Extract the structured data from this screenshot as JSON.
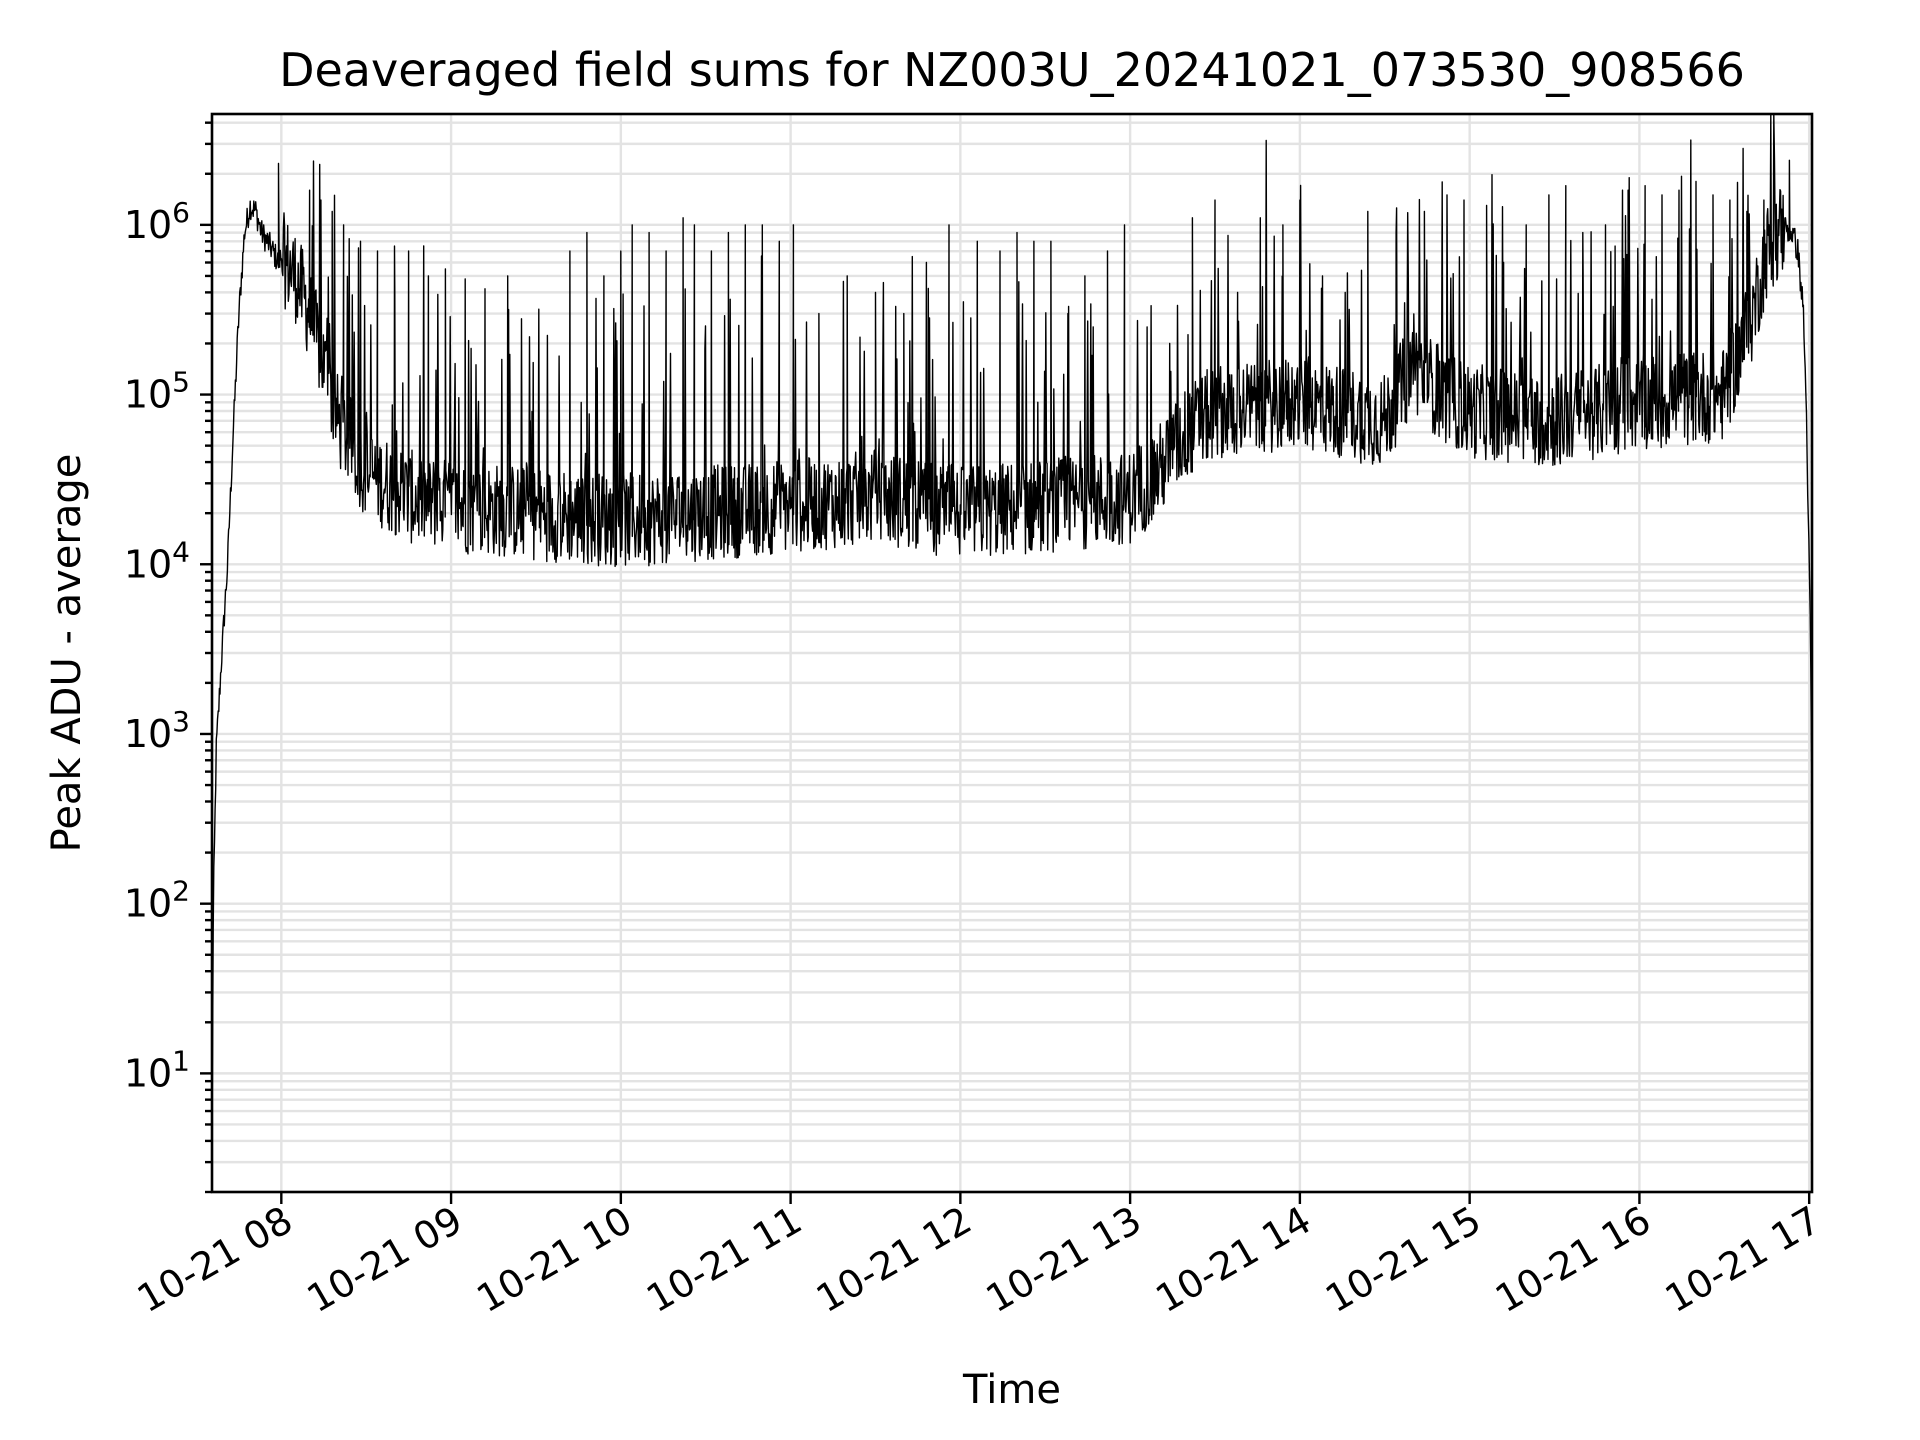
{
  "chart_data": {
    "type": "line",
    "title": "Deaveraged field sums for NZ003U_20241021_073530_908566",
    "xlabel": "Time",
    "ylabel": "Peak ADU - average",
    "yscale": "log",
    "ylim": [
      2,
      4500000
    ],
    "xlim": [
      "2024-10-21 07:35:30",
      "2024-10-21 17:01:00"
    ],
    "grid": true,
    "grid_minor": true,
    "line_color": "#000000",
    "x_ticks": [
      "10-21 08",
      "10-21 09",
      "10-21 10",
      "10-21 11",
      "10-21 12",
      "10-21 13",
      "10-21 14",
      "10-21 15",
      "10-21 16",
      "10-21 17"
    ],
    "x_tick_times": [
      "2024-10-21 08:00",
      "2024-10-21 09:00",
      "2024-10-21 10:00",
      "2024-10-21 11:00",
      "2024-10-21 12:00",
      "2024-10-21 13:00",
      "2024-10-21 14:00",
      "2024-10-21 15:00",
      "2024-10-21 16:00",
      "2024-10-21 17:00"
    ],
    "y_ticks": [
      {
        "value": 10,
        "base": "10",
        "exp": "1"
      },
      {
        "value": 100,
        "base": "10",
        "exp": "2"
      },
      {
        "value": 1000,
        "base": "10",
        "exp": "3"
      },
      {
        "value": 10000,
        "base": "10",
        "exp": "4"
      },
      {
        "value": 100000,
        "base": "10",
        "exp": "5"
      },
      {
        "value": 1000000,
        "base": "10",
        "exp": "6"
      }
    ],
    "series": [
      {
        "x": [
          "2024-10-21 07:35:30",
          "2024-10-21 07:36:00",
          "2024-10-21 07:37:00",
          "2024-10-21 07:39:00",
          "2024-10-21 07:41:00",
          "2024-10-21 07:43:00",
          "2024-10-21 07:45:00",
          "2024-10-21 07:47:00",
          "2024-10-21 07:49:00",
          "2024-10-21 07:51:00",
          "2024-10-21 07:53:00",
          "2024-10-21 07:55:00",
          "2024-10-21 07:57:00",
          "2024-10-21 07:59:00",
          "2024-10-21 08:00:00",
          "2024-10-21 08:05:00",
          "2024-10-21 08:10:00",
          "2024-10-21 08:15:00",
          "2024-10-21 08:20:00",
          "2024-10-21 08:30:00",
          "2024-10-21 08:45:00",
          "2024-10-21 09:00:00",
          "2024-10-21 09:30:00",
          "2024-10-21 10:00:00",
          "2024-10-21 10:30:00",
          "2024-10-21 11:00:00",
          "2024-10-21 11:30:00",
          "2024-10-21 12:00:00",
          "2024-10-21 12:30:00",
          "2024-10-21 13:00:00",
          "2024-10-21 13:10:00",
          "2024-10-21 13:20:00",
          "2024-10-21 13:30:00",
          "2024-10-21 14:00:00",
          "2024-10-21 14:30:00",
          "2024-10-21 14:40:00",
          "2024-10-21 14:50:00",
          "2024-10-21 15:00:00",
          "2024-10-21 15:30:00",
          "2024-10-21 16:00:00",
          "2024-10-21 16:30:00",
          "2024-10-21 16:40:00",
          "2024-10-21 16:45:00",
          "2024-10-21 16:50:00",
          "2024-10-21 16:52:00",
          "2024-10-21 16:54:00",
          "2024-10-21 16:56:00",
          "2024-10-21 16:58:00",
          "2024-10-21 16:59:00",
          "2024-10-21 17:00:00",
          "2024-10-21 17:00:30",
          "2024-10-21 17:01:00"
        ],
        "y": [
          4,
          100,
          800,
          3000,
          10000,
          60000,
          300000,
          900000,
          1300000,
          1200000,
          900000,
          800000,
          700000,
          600000,
          650000,
          500000,
          300000,
          150000,
          70000,
          35000,
          25000,
          22000,
          20000,
          18000,
          20000,
          22000,
          25000,
          20000,
          22000,
          25000,
          35000,
          60000,
          80000,
          90000,
          70000,
          150000,
          100000,
          80000,
          70000,
          90000,
          100000,
          300000,
          700000,
          950000,
          950000,
          900000,
          700000,
          300000,
          80000,
          10000,
          3000,
          400
        ],
        "spikes": [
          [
            "2024-10-21 07:59:00",
            2300000
          ],
          [
            "2024-10-21 08:10:00",
            1600000
          ],
          [
            "2024-10-21 08:14:00",
            1400000
          ],
          [
            "2024-10-21 08:18:00",
            1200000
          ],
          [
            "2024-10-21 08:22:00",
            1000000
          ],
          [
            "2024-10-21 08:28:00",
            800000
          ],
          [
            "2024-10-21 08:34:00",
            700000
          ],
          [
            "2024-10-21 08:40:00",
            750000
          ],
          [
            "2024-10-21 08:45:00",
            700000
          ],
          [
            "2024-10-21 08:52:00",
            500000
          ],
          [
            "2024-10-21 08:58:00",
            550000
          ],
          [
            "2024-10-21 09:05:00",
            480000
          ],
          [
            "2024-10-21 09:12:00",
            420000
          ],
          [
            "2024-10-21 09:20:00",
            500000
          ],
          [
            "2024-10-21 09:28:00",
            70000
          ],
          [
            "2024-10-21 09:42:00",
            700000
          ],
          [
            "2024-10-21 09:48:00",
            900000
          ],
          [
            "2024-10-21 09:54:00",
            500000
          ],
          [
            "2024-10-21 10:00:00",
            700000
          ],
          [
            "2024-10-21 10:04:00",
            1000000
          ],
          [
            "2024-10-21 10:10:00",
            900000
          ],
          [
            "2024-10-21 10:16:00",
            700000
          ],
          [
            "2024-10-21 10:22:00",
            1100000
          ],
          [
            "2024-10-21 10:26:00",
            1000000
          ],
          [
            "2024-10-21 10:32:00",
            700000
          ],
          [
            "2024-10-21 10:38:00",
            900000
          ],
          [
            "2024-10-21 10:44:00",
            1000000
          ],
          [
            "2024-10-21 10:50:00",
            1000000
          ],
          [
            "2024-10-21 10:56:00",
            800000
          ],
          [
            "2024-10-21 11:01:00",
            1000000
          ],
          [
            "2024-10-21 11:10:00",
            300000
          ],
          [
            "2024-10-21 11:20:00",
            500000
          ],
          [
            "2024-10-21 11:30:00",
            400000
          ],
          [
            "2024-10-21 11:40:00",
            300000
          ],
          [
            "2024-10-21 11:48:00",
            600000
          ],
          [
            "2024-10-21 11:56:00",
            1000000
          ],
          [
            "2024-10-21 12:06:00",
            800000
          ],
          [
            "2024-10-21 12:14:00",
            700000
          ],
          [
            "2024-10-21 12:20:00",
            900000
          ],
          [
            "2024-10-21 12:26:00",
            800000
          ],
          [
            "2024-10-21 12:32:00",
            800000
          ],
          [
            "2024-10-21 12:38:00",
            300000
          ],
          [
            "2024-10-21 12:44:00",
            500000
          ],
          [
            "2024-10-21 12:52:00",
            700000
          ],
          [
            "2024-10-21 12:58:00",
            1000000
          ],
          [
            "2024-10-21 13:06:00",
            250000
          ],
          [
            "2024-10-21 13:14:00",
            200000
          ],
          [
            "2024-10-21 13:22:00",
            1100000
          ],
          [
            "2024-10-21 13:30:00",
            1400000
          ],
          [
            "2024-10-21 13:38:00",
            400000
          ],
          [
            "2024-10-21 13:46:00",
            1100000
          ],
          [
            "2024-10-21 13:54:00",
            1000000
          ],
          [
            "2024-10-21 14:00:00",
            1400000
          ],
          [
            "2024-10-21 14:08:00",
            500000
          ],
          [
            "2024-10-21 14:16:00",
            400000
          ],
          [
            "2024-10-21 14:24:00",
            1200000
          ],
          [
            "2024-10-21 14:34:00",
            900000
          ],
          [
            "2024-10-21 14:44:00",
            1200000
          ],
          [
            "2024-10-21 14:52:00",
            1500000
          ],
          [
            "2024-10-21 14:58:00",
            1400000
          ],
          [
            "2024-10-21 15:06:00",
            1300000
          ],
          [
            "2024-10-21 15:12:00",
            600000
          ],
          [
            "2024-10-21 15:20:00",
            1000000
          ],
          [
            "2024-10-21 15:28:00",
            1500000
          ],
          [
            "2024-10-21 15:34:00",
            1700000
          ],
          [
            "2024-10-21 15:40:00",
            900000
          ],
          [
            "2024-10-21 15:48:00",
            1000000
          ],
          [
            "2024-10-21 15:56:00",
            1600000
          ],
          [
            "2024-10-21 16:02:00",
            1700000
          ],
          [
            "2024-10-21 16:08:00",
            1500000
          ],
          [
            "2024-10-21 16:14:00",
            1600000
          ],
          [
            "2024-10-21 16:20:00",
            1800000
          ],
          [
            "2024-10-21 16:26:00",
            1500000
          ],
          [
            "2024-10-21 16:32:00",
            1400000
          ],
          [
            "2024-10-21 16:38:00",
            1200000
          ],
          [
            "2024-10-21 16:44:00",
            1400000
          ],
          [
            "2024-10-21 16:53:00",
            2400000
          ]
        ]
      }
    ]
  }
}
